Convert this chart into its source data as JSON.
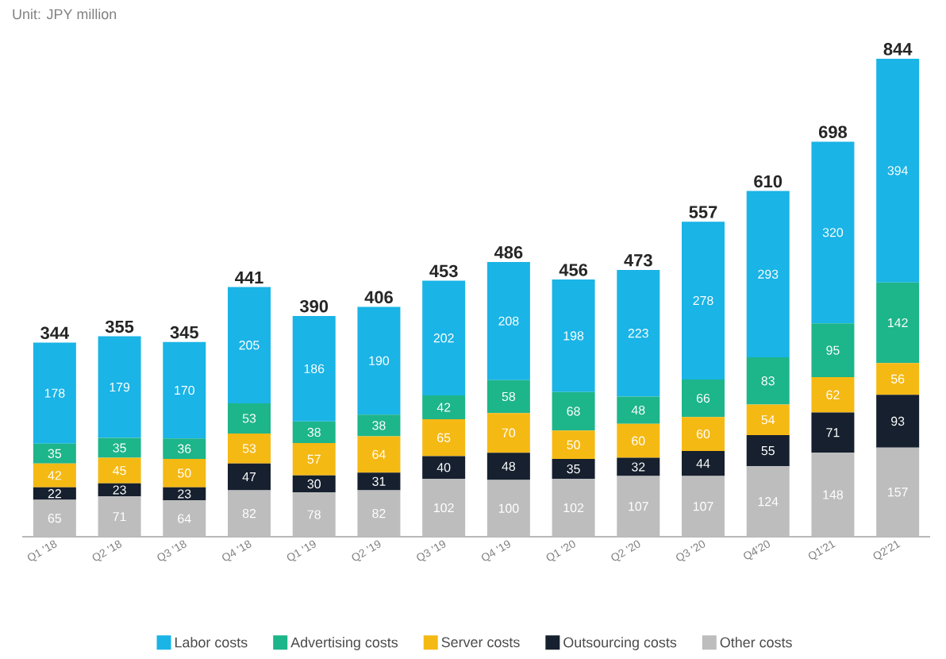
{
  "chart_data": {
    "type": "bar",
    "stacked": true,
    "data_labels": true,
    "legend": "bottom",
    "annotations": [
      "Unit: JPY million"
    ],
    "categories": [
      "Q1 '18",
      "Q2 '18",
      "Q3 '18",
      "Q4 '18",
      "Q1 '19",
      "Q2 '19",
      "Q3 '19",
      "Q4 '19",
      "Q1 '20",
      "Q2 '20",
      "Q3 '20",
      "Q4'20",
      "Q1'21",
      "Q2'21"
    ],
    "series": [
      {
        "name": "Other costs",
        "color": "#bdbdbd",
        "values": [
          65,
          71,
          64,
          82,
          78,
          82,
          102,
          100,
          102,
          107,
          107,
          124,
          148,
          157
        ]
      },
      {
        "name": "Outsourcing costs",
        "color": "#16202e",
        "values": [
          22,
          23,
          23,
          47,
          30,
          31,
          40,
          48,
          35,
          32,
          44,
          55,
          71,
          93
        ]
      },
      {
        "name": "Server costs",
        "color": "#f5b914",
        "values": [
          42,
          45,
          50,
          53,
          57,
          64,
          65,
          70,
          50,
          60,
          60,
          54,
          62,
          56
        ]
      },
      {
        "name": "Advertising costs",
        "color": "#1db58a",
        "values": [
          35,
          35,
          36,
          53,
          38,
          38,
          42,
          58,
          68,
          48,
          66,
          83,
          95,
          142
        ]
      },
      {
        "name": "Labor costs",
        "color": "#1ab4e6",
        "values": [
          178,
          179,
          170,
          205,
          186,
          190,
          202,
          208,
          198,
          223,
          278,
          293,
          320,
          394
        ]
      }
    ],
    "totals": [
      "344",
      "355",
      "345",
      "441",
      "390",
      "406",
      "453",
      "486",
      "456",
      "473",
      "557",
      "610",
      "698",
      "844"
    ]
  }
}
